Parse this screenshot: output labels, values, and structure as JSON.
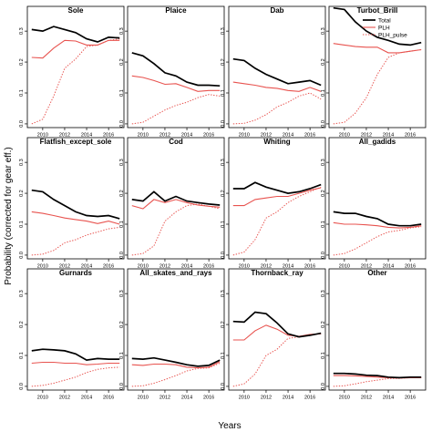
{
  "figure": {
    "ylabel": "Probability (corrected for gear eff.)",
    "xlabel": "Years"
  },
  "legend": {
    "entries": [
      {
        "label": "Total",
        "color": "#000000",
        "style": "solid-thick"
      },
      {
        "label": "PLH",
        "color": "#e8534f",
        "style": "solid"
      },
      {
        "label": "PLH_pulse",
        "color": "#e8534f",
        "style": "dotted"
      }
    ],
    "placement": "top-right of Turbot_Brill panel"
  },
  "chart_data": {
    "type": "line",
    "layout": "4x3 small multiples",
    "x": [
      2009,
      2010,
      2011,
      2012,
      2013,
      2014,
      2015,
      2016,
      2017
    ],
    "x_ticks": [
      "2010",
      "2012",
      "2014",
      "2016"
    ],
    "y_ticks": [
      "0.0",
      "0.1",
      "0.2",
      "0.3"
    ],
    "ylim": [
      0,
      0.38
    ],
    "grid": false,
    "panels": [
      {
        "title": "Sole",
        "series": [
          {
            "name": "Total",
            "values": [
              0.305,
              0.3,
              0.315,
              0.305,
              0.295,
              0.275,
              0.265,
              0.28,
              0.278
            ]
          },
          {
            "name": "PLH",
            "values": [
              0.215,
              0.213,
              0.245,
              0.27,
              0.268,
              0.255,
              0.255,
              0.27,
              0.27
            ]
          },
          {
            "name": "PLH_pulse",
            "values": [
              0.0,
              0.015,
              0.09,
              0.18,
              0.21,
              0.25,
              0.255,
              0.27,
              0.275
            ]
          }
        ]
      },
      {
        "title": "Plaice",
        "series": [
          {
            "name": "Total",
            "values": [
              0.23,
              0.22,
              0.195,
              0.165,
              0.155,
              0.135,
              0.125,
              0.125,
              0.123
            ]
          },
          {
            "name": "PLH",
            "values": [
              0.155,
              0.15,
              0.14,
              0.128,
              0.13,
              0.118,
              0.105,
              0.108,
              0.108
            ]
          },
          {
            "name": "PLH_pulse",
            "values": [
              0.0,
              0.005,
              0.025,
              0.045,
              0.06,
              0.07,
              0.085,
              0.095,
              0.09
            ]
          }
        ]
      },
      {
        "title": "Dab",
        "series": [
          {
            "name": "Total",
            "values": [
              0.21,
              0.205,
              0.18,
              0.16,
              0.145,
              0.13,
              0.135,
              0.14,
              0.125
            ]
          },
          {
            "name": "PLH",
            "values": [
              0.135,
              0.13,
              0.125,
              0.118,
              0.115,
              0.108,
              0.105,
              0.118,
              0.105
            ]
          },
          {
            "name": "PLH_pulse",
            "values": [
              0.0,
              0.002,
              0.012,
              0.03,
              0.055,
              0.07,
              0.09,
              0.1,
              0.08
            ]
          }
        ]
      },
      {
        "title": "Turbot_Brill",
        "series": [
          {
            "name": "Total",
            "values": [
              0.375,
              0.37,
              0.33,
              0.3,
              0.28,
              0.27,
              0.258,
              0.255,
              0.263
            ]
          },
          {
            "name": "PLH",
            "values": [
              0.26,
              0.255,
              0.25,
              0.248,
              0.248,
              0.23,
              0.23,
              0.235,
              0.24
            ]
          },
          {
            "name": "PLH_pulse",
            "values": [
              0.0,
              0.005,
              0.035,
              0.085,
              0.16,
              0.215,
              0.23,
              0.235,
              0.24
            ]
          }
        ]
      },
      {
        "title": "Flatfish_except_sole",
        "series": [
          {
            "name": "Total",
            "values": [
              0.21,
              0.205,
              0.18,
              0.16,
              0.14,
              0.128,
              0.125,
              0.128,
              0.118
            ]
          },
          {
            "name": "PLH",
            "values": [
              0.14,
              0.135,
              0.128,
              0.12,
              0.115,
              0.11,
              0.102,
              0.11,
              0.1
            ]
          },
          {
            "name": "PLH_pulse",
            "values": [
              0.0,
              0.003,
              0.015,
              0.04,
              0.05,
              0.065,
              0.075,
              0.085,
              0.09
            ]
          }
        ]
      },
      {
        "title": "Cod",
        "series": [
          {
            "name": "Total",
            "values": [
              0.18,
              0.175,
              0.205,
              0.175,
              0.19,
              0.175,
              0.17,
              0.165,
              0.162
            ]
          },
          {
            "name": "PLH",
            "values": [
              0.16,
              0.15,
              0.18,
              0.17,
              0.18,
              0.17,
              0.162,
              0.158,
              0.155
            ]
          },
          {
            "name": "PLH_pulse",
            "values": [
              0.0,
              0.005,
              0.03,
              0.11,
              0.14,
              0.16,
              0.165,
              0.158,
              0.15
            ]
          }
        ]
      },
      {
        "title": "Whiting",
        "series": [
          {
            "name": "Total",
            "values": [
              0.215,
              0.215,
              0.235,
              0.22,
              0.21,
              0.2,
              0.205,
              0.215,
              0.228
            ]
          },
          {
            "name": "PLH",
            "values": [
              0.16,
              0.16,
              0.18,
              0.185,
              0.19,
              0.19,
              0.2,
              0.21,
              0.218
            ]
          },
          {
            "name": "PLH_pulse",
            "values": [
              0.0,
              0.01,
              0.05,
              0.12,
              0.14,
              0.17,
              0.19,
              0.205,
              0.22
            ]
          }
        ]
      },
      {
        "title": "All_gadids",
        "series": [
          {
            "name": "Total",
            "values": [
              0.14,
              0.135,
              0.135,
              0.125,
              0.118,
              0.1,
              0.095,
              0.095,
              0.1
            ]
          },
          {
            "name": "PLH",
            "values": [
              0.105,
              0.1,
              0.1,
              0.098,
              0.095,
              0.09,
              0.088,
              0.09,
              0.095
            ]
          },
          {
            "name": "PLH_pulse",
            "values": [
              0.0,
              0.005,
              0.02,
              0.04,
              0.06,
              0.075,
              0.08,
              0.088,
              0.092
            ]
          }
        ]
      },
      {
        "title": "Gurnards",
        "series": [
          {
            "name": "Total",
            "values": [
              0.115,
              0.12,
              0.118,
              0.115,
              0.105,
              0.085,
              0.09,
              0.088,
              0.088
            ]
          },
          {
            "name": "PLH",
            "values": [
              0.075,
              0.078,
              0.078,
              0.075,
              0.075,
              0.07,
              0.072,
              0.075,
              0.075
            ]
          },
          {
            "name": "PLH_pulse",
            "values": [
              0.0,
              0.003,
              0.01,
              0.02,
              0.03,
              0.045,
              0.055,
              0.06,
              0.062
            ]
          }
        ]
      },
      {
        "title": "All_skates_and_rays",
        "series": [
          {
            "name": "Total",
            "values": [
              0.09,
              0.088,
              0.092,
              0.085,
              0.078,
              0.07,
              0.065,
              0.068,
              0.085
            ]
          },
          {
            "name": "PLH",
            "values": [
              0.07,
              0.068,
              0.072,
              0.072,
              0.07,
              0.062,
              0.06,
              0.062,
              0.08
            ]
          },
          {
            "name": "PLH_pulse",
            "values": [
              0.0,
              0.002,
              0.01,
              0.022,
              0.035,
              0.05,
              0.058,
              0.06,
              0.075
            ]
          }
        ]
      },
      {
        "title": "Thornback_ray",
        "series": [
          {
            "name": "Total",
            "values": [
              0.21,
              0.208,
              0.24,
              0.235,
              0.205,
              0.17,
              0.16,
              0.165,
              0.172
            ]
          },
          {
            "name": "PLH",
            "values": [
              0.15,
              0.15,
              0.18,
              0.198,
              0.185,
              0.165,
              0.162,
              0.168,
              0.17
            ]
          },
          {
            "name": "PLH_pulse",
            "values": [
              0.0,
              0.008,
              0.04,
              0.1,
              0.12,
              0.155,
              0.16,
              0.165,
              0.172
            ]
          }
        ]
      },
      {
        "title": "Other",
        "series": [
          {
            "name": "Total",
            "values": [
              0.042,
              0.042,
              0.04,
              0.036,
              0.035,
              0.03,
              0.028,
              0.03,
              0.03
            ]
          },
          {
            "name": "PLH",
            "values": [
              0.035,
              0.035,
              0.034,
              0.032,
              0.03,
              0.028,
              0.027,
              0.028,
              0.028
            ]
          },
          {
            "name": "PLH_pulse",
            "values": [
              0.0,
              0.002,
              0.008,
              0.015,
              0.02,
              0.025,
              0.026,
              0.028,
              0.028
            ]
          }
        ]
      }
    ]
  }
}
